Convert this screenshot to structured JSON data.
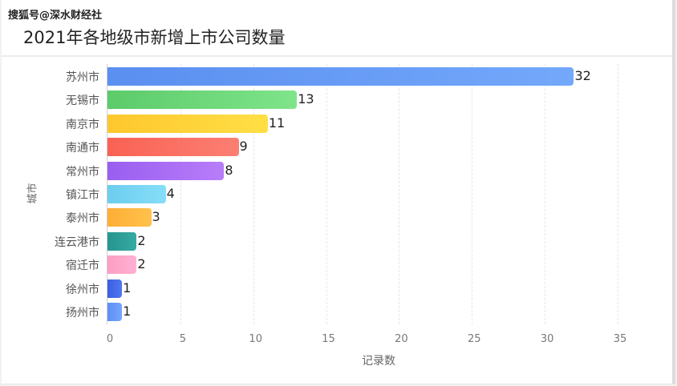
{
  "watermark": "搜狐号@深水财经社",
  "title": "2021年各地级市新增上市公司数量",
  "chart_data": {
    "type": "bar",
    "orientation": "horizontal",
    "title": "2021年各地级市新增上市公司数量",
    "xlabel": "记录数",
    "ylabel": "城市",
    "xlim": [
      0,
      35
    ],
    "xticks": [
      0,
      5,
      10,
      15,
      20,
      25,
      30,
      35
    ],
    "grid": true,
    "legend": "none",
    "categories": [
      "苏州市",
      "无锡市",
      "南京市",
      "南通市",
      "常州市",
      "镇江市",
      "泰州市",
      "连云港市",
      "宿迁市",
      "徐州市",
      "扬州市"
    ],
    "values": [
      32,
      13,
      11,
      9,
      8,
      4,
      3,
      2,
      2,
      1,
      1
    ],
    "colors": [
      [
        "#5b8ff0",
        "#73a8fb"
      ],
      [
        "#5ccb6a",
        "#7fe48a"
      ],
      [
        "#fec72e",
        "#ffdf45"
      ],
      [
        "#f96254",
        "#fb7f72"
      ],
      [
        "#9a5ef0",
        "#b77df9"
      ],
      [
        "#6ccdee",
        "#86def9"
      ],
      [
        "#feae36",
        "#ffc24c"
      ],
      [
        "#27958f",
        "#36aaa3"
      ],
      [
        "#fd9dc4",
        "#ffb1d3"
      ],
      [
        "#3a5fe0",
        "#5276f0"
      ],
      [
        "#5c8ff5",
        "#78a6fb"
      ]
    ]
  }
}
